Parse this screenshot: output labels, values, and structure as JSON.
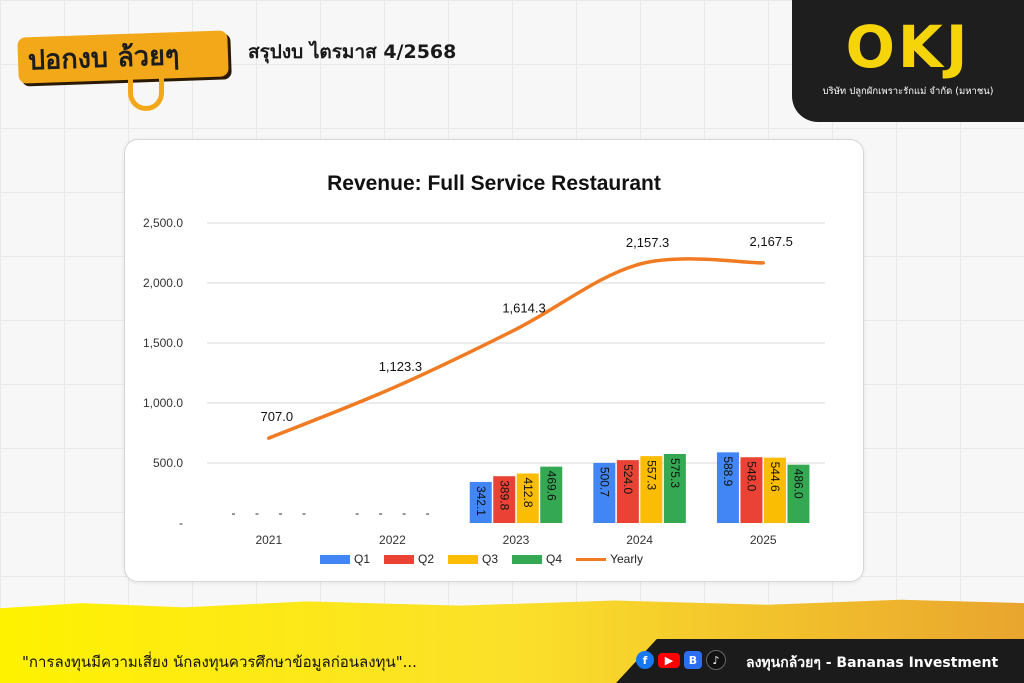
{
  "brand": {
    "logo_text": "ปอกงบ ล้วยๆ",
    "header_title": "สรุปงบ  ไตรมาส  4/2568",
    "company_short": "OKJ",
    "company_full": "บริษัท ปลูกผักเพราะรักแม่ จำกัด (มหาชน)"
  },
  "chart_data": {
    "type": "bar",
    "title": "Revenue: Full Service Restaurant",
    "categories": [
      "2021",
      "2022",
      "2023",
      "2024",
      "2025"
    ],
    "ylim": [
      0,
      2500
    ],
    "yticks": [
      0,
      500,
      1000,
      1500,
      2000,
      2500
    ],
    "ytick_labels": [
      "-",
      "500.0",
      "1,000.0",
      "1,500.0",
      "2,000.0",
      "2,500.0"
    ],
    "grid": true,
    "legend_position": "bottom",
    "series": [
      {
        "name": "Q1",
        "kind": "bar",
        "color": "#4285f4",
        "values": [
          null,
          null,
          342.1,
          500.7,
          588.9
        ],
        "labels": [
          "",
          "",
          "342.1",
          "500.7",
          "588.9"
        ]
      },
      {
        "name": "Q2",
        "kind": "bar",
        "color": "#ea4335",
        "values": [
          null,
          null,
          389.8,
          524.0,
          548.0
        ],
        "labels": [
          "",
          "",
          "389.8",
          "524.0",
          "548.0"
        ]
      },
      {
        "name": "Q3",
        "kind": "bar",
        "color": "#fbbc04",
        "values": [
          null,
          null,
          412.8,
          557.3,
          544.6
        ],
        "labels": [
          "",
          "",
          "412.8",
          "557.3",
          "544.6"
        ]
      },
      {
        "name": "Q4",
        "kind": "bar",
        "color": "#34a853",
        "values": [
          null,
          null,
          469.6,
          575.3,
          486.0
        ],
        "labels": [
          "",
          "",
          "469.6",
          "575.3",
          "486.0"
        ]
      },
      {
        "name": "Yearly",
        "kind": "line",
        "color": "#f07b23",
        "values": [
          707.0,
          1123.3,
          1614.3,
          2157.3,
          2167.5
        ],
        "labels": [
          "707.0",
          "1,123.3",
          "1,614.3",
          "2,157.3",
          "2,167.5"
        ]
      }
    ],
    "empty_marker": "-"
  },
  "footer": {
    "disclaimer": "\"การลงทุนมีความเสี่ยง  นักลงทุนควรศึกษาข้อมูลก่อนลงทุน\"...",
    "social_label": "ลงทุนกล้วยๆ  -  Bananas Investment",
    "icons": [
      "facebook-icon",
      "youtube-icon",
      "blockdit-icon",
      "tiktok-icon"
    ]
  }
}
